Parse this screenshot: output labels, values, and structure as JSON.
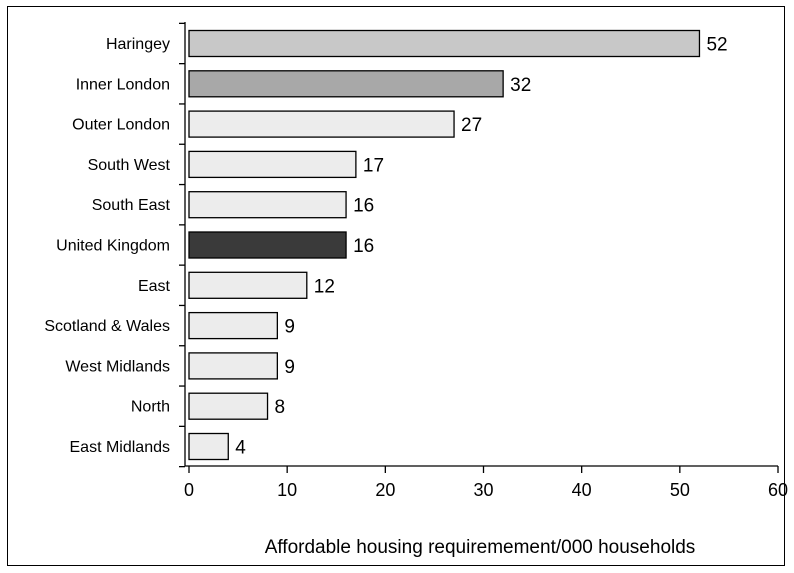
{
  "chart_data": {
    "type": "bar",
    "orientation": "horizontal",
    "categories": [
      "Haringey",
      "Inner London",
      "Outer London",
      "South West",
      "South East",
      "United Kingdom",
      "East",
      "Scotland & Wales",
      "West Midlands",
      "North",
      "East Midlands"
    ],
    "values": [
      52,
      32,
      27,
      17,
      16,
      16,
      12,
      9,
      9,
      8,
      4
    ],
    "bar_colors": [
      "#c8c8c8",
      "#a8a8a8",
      "#ececec",
      "#ececec",
      "#ececec",
      "#3a3a3a",
      "#ececec",
      "#ececec",
      "#ececec",
      "#ececec",
      "#ececec"
    ],
    "xlabel": "Affordable housing requiremement/000 households",
    "xlim": [
      0,
      60
    ],
    "xticks": [
      0,
      10,
      20,
      30,
      40,
      50,
      60
    ],
    "grid": false,
    "legend": "none"
  }
}
